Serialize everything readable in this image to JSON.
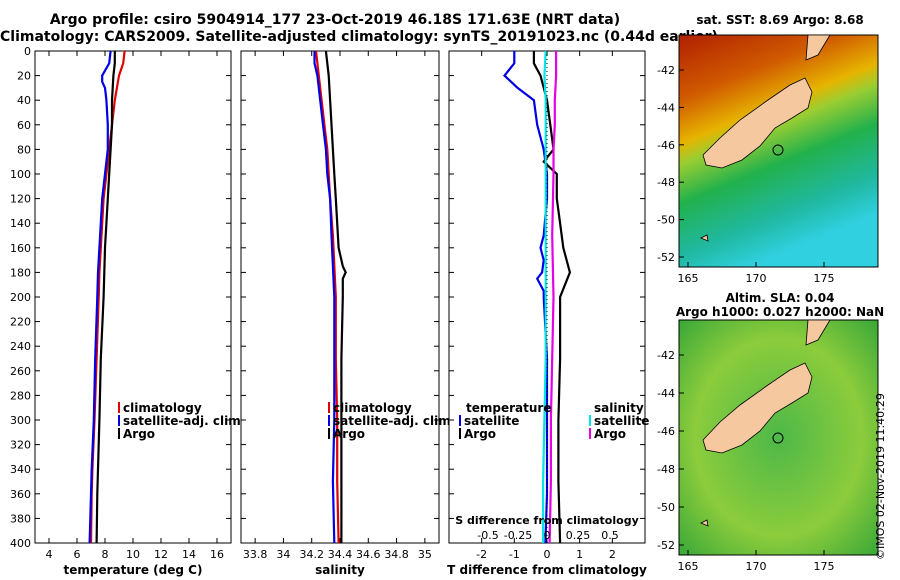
{
  "header": {
    "title_line1": "Argo profile: csiro 5904914_177 23-Oct-2019 46.18S 171.63E (NRT data)",
    "title_line2": "Climatology: CARS2009. Satellite-adjusted climatology: synTS_20191023.nc (0.44d earlier)"
  },
  "map_top": {
    "title": "sat. SST: 8.69 Argo: 8.68",
    "lat_ticks": [
      "-42",
      "-44",
      "-46",
      "-48",
      "-50",
      "-52"
    ],
    "lon_ticks": [
      "165",
      "170",
      "175"
    ]
  },
  "map_bottom": {
    "title_line1": "Altim. SLA: 0.04",
    "title_line2": "Argo h1000: 0.027 h2000: NaN",
    "lat_ticks": [
      "-42",
      "-44",
      "-46",
      "-48",
      "-50",
      "-52"
    ],
    "lon_ticks": [
      "165",
      "170",
      "175"
    ]
  },
  "copyright": "©IMOS 02-Nov-2019 11:40:29",
  "colors": {
    "climatology": "#e00000",
    "satellite": "#0000e6",
    "argo": "#000000",
    "sat_salinity": "#00e6e6",
    "argo_salinity": "#e600e6",
    "land": "#f5c8a0"
  },
  "legend_temp": [
    "climatology",
    "satellite-adj. clim.",
    "Argo"
  ],
  "legend_sal": [
    "climatology",
    "satellite-adj. clim.",
    "Argo"
  ],
  "legend_diff": {
    "temp_head": "temperature",
    "sal_head": "salinity",
    "temp": [
      "satellite",
      "Argo"
    ],
    "sal": [
      "satellite",
      "Argo"
    ]
  },
  "chart_data": [
    {
      "type": "line",
      "xlabel": "temperature (deg C)",
      "ylabel": "depth",
      "xlim": [
        3,
        17
      ],
      "ylim": [
        400,
        0
      ],
      "xticks": [
        "4",
        "6",
        "8",
        "10",
        "12",
        "14",
        "16"
      ],
      "yticks": [
        "0",
        "20",
        "40",
        "60",
        "80",
        "100",
        "120",
        "140",
        "160",
        "180",
        "200",
        "220",
        "240",
        "260",
        "280",
        "300",
        "320",
        "340",
        "360",
        "380",
        "400"
      ],
      "series": [
        {
          "name": "climatology",
          "depth": [
            0,
            10,
            20,
            40,
            60,
            80,
            100,
            120,
            140,
            160,
            180,
            200,
            250,
            300,
            340,
            360,
            400
          ],
          "values": [
            9.4,
            9.3,
            9.0,
            8.7,
            8.5,
            8.3,
            8.1,
            7.9,
            7.8,
            7.7,
            7.6,
            7.55,
            7.4,
            7.25,
            7.1,
            7.05,
            7.0
          ]
        },
        {
          "name": "satellite-adj. clim.",
          "depth": [
            0,
            10,
            20,
            25,
            30,
            40,
            60,
            80,
            100,
            120,
            140,
            160,
            180,
            200,
            250,
            300,
            340,
            360,
            400
          ],
          "values": [
            8.4,
            8.3,
            7.8,
            7.8,
            8.0,
            8.1,
            8.2,
            8.2,
            8.0,
            7.8,
            7.7,
            7.6,
            7.5,
            7.45,
            7.3,
            7.2,
            7.05,
            7.0,
            6.9
          ]
        },
        {
          "name": "Argo",
          "depth": [
            0,
            10,
            20,
            40,
            60,
            80,
            100,
            120,
            140,
            160,
            180,
            200,
            250,
            300,
            340,
            360,
            400
          ],
          "values": [
            8.7,
            8.7,
            8.6,
            8.5,
            8.5,
            8.4,
            8.3,
            8.2,
            8.1,
            8.0,
            7.95,
            7.9,
            7.7,
            7.6,
            7.5,
            7.45,
            7.4
          ]
        }
      ]
    },
    {
      "type": "line",
      "xlabel": "salinity",
      "ylabel": "depth",
      "xlim": [
        33.7,
        35.1
      ],
      "ylim": [
        400,
        0
      ],
      "xticks": [
        "33.8",
        "34",
        "34.2",
        "34.4",
        "34.6",
        "34.8",
        "35"
      ],
      "series": [
        {
          "name": "climatology",
          "depth": [
            0,
            10,
            20,
            40,
            60,
            80,
            100,
            120,
            150,
            200,
            250,
            300,
            350,
            400
          ],
          "values": [
            34.23,
            34.24,
            34.25,
            34.27,
            34.29,
            34.31,
            34.32,
            34.33,
            34.35,
            34.37,
            34.37,
            34.38,
            34.38,
            34.39
          ]
        },
        {
          "name": "satellite-adj. clim.",
          "depth": [
            0,
            10,
            20,
            40,
            60,
            80,
            100,
            120,
            150,
            200,
            250,
            300,
            350,
            400
          ],
          "values": [
            34.22,
            34.22,
            34.24,
            34.26,
            34.28,
            34.3,
            34.31,
            34.33,
            34.34,
            34.36,
            34.36,
            34.36,
            34.35,
            34.36
          ]
        },
        {
          "name": "Argo",
          "depth": [
            0,
            10,
            20,
            40,
            60,
            80,
            100,
            120,
            140,
            160,
            175,
            180,
            185,
            200,
            250,
            300,
            350,
            400
          ],
          "values": [
            34.3,
            34.31,
            34.32,
            34.33,
            34.34,
            34.35,
            34.36,
            34.37,
            34.38,
            34.39,
            34.42,
            34.44,
            34.42,
            34.42,
            34.41,
            34.41,
            34.41,
            34.41
          ]
        }
      ]
    },
    {
      "type": "line",
      "xlabel": "T difference from climatology",
      "xlabel2": "S difference from climatology",
      "xlim": [
        -3,
        3
      ],
      "ylim": [
        400,
        0
      ],
      "xticks": [
        "-2",
        "-1",
        "0",
        "1",
        "2"
      ],
      "xticks2": [
        "-0.5",
        "-0.25",
        "0",
        "0.25",
        "0.5"
      ],
      "series": [
        {
          "name": "temperature satellite",
          "depth": [
            0,
            10,
            20,
            30,
            40,
            60,
            80,
            100,
            120,
            150,
            160,
            170,
            180,
            185,
            195,
            200,
            250,
            300,
            340,
            360,
            400
          ],
          "values": [
            -1.0,
            -1.0,
            -1.3,
            -0.9,
            -0.4,
            -0.3,
            -0.1,
            0.0,
            0.0,
            -0.1,
            -0.2,
            -0.1,
            -0.15,
            -0.3,
            -0.1,
            -0.1,
            0.0,
            0.0,
            0.0,
            0.0,
            -0.05
          ]
        },
        {
          "name": "temperature Argo",
          "depth": [
            0,
            10,
            20,
            40,
            60,
            80,
            90,
            100,
            120,
            140,
            160,
            180,
            200,
            250,
            300,
            350,
            400
          ],
          "values": [
            -0.4,
            -0.4,
            -0.2,
            0.0,
            0.1,
            0.2,
            -0.1,
            0.3,
            0.3,
            0.4,
            0.5,
            0.7,
            0.4,
            0.4,
            0.35,
            0.35,
            0.4
          ]
        },
        {
          "name": "salinity satellite",
          "depth": [
            0,
            20,
            40,
            60,
            80,
            100,
            150,
            200,
            250,
            300,
            350,
            400
          ],
          "values": [
            -0.01,
            -0.02,
            -0.01,
            -0.01,
            -0.01,
            -0.01,
            -0.01,
            -0.01,
            -0.01,
            -0.02,
            -0.03,
            -0.03
          ]
        },
        {
          "name": "salinity Argo",
          "depth": [
            0,
            20,
            40,
            60,
            80,
            100,
            150,
            200,
            250,
            300,
            350,
            400
          ],
          "values": [
            0.07,
            0.07,
            0.06,
            0.06,
            0.05,
            0.05,
            0.04,
            0.05,
            0.04,
            0.03,
            0.03,
            0.02
          ]
        }
      ]
    }
  ]
}
